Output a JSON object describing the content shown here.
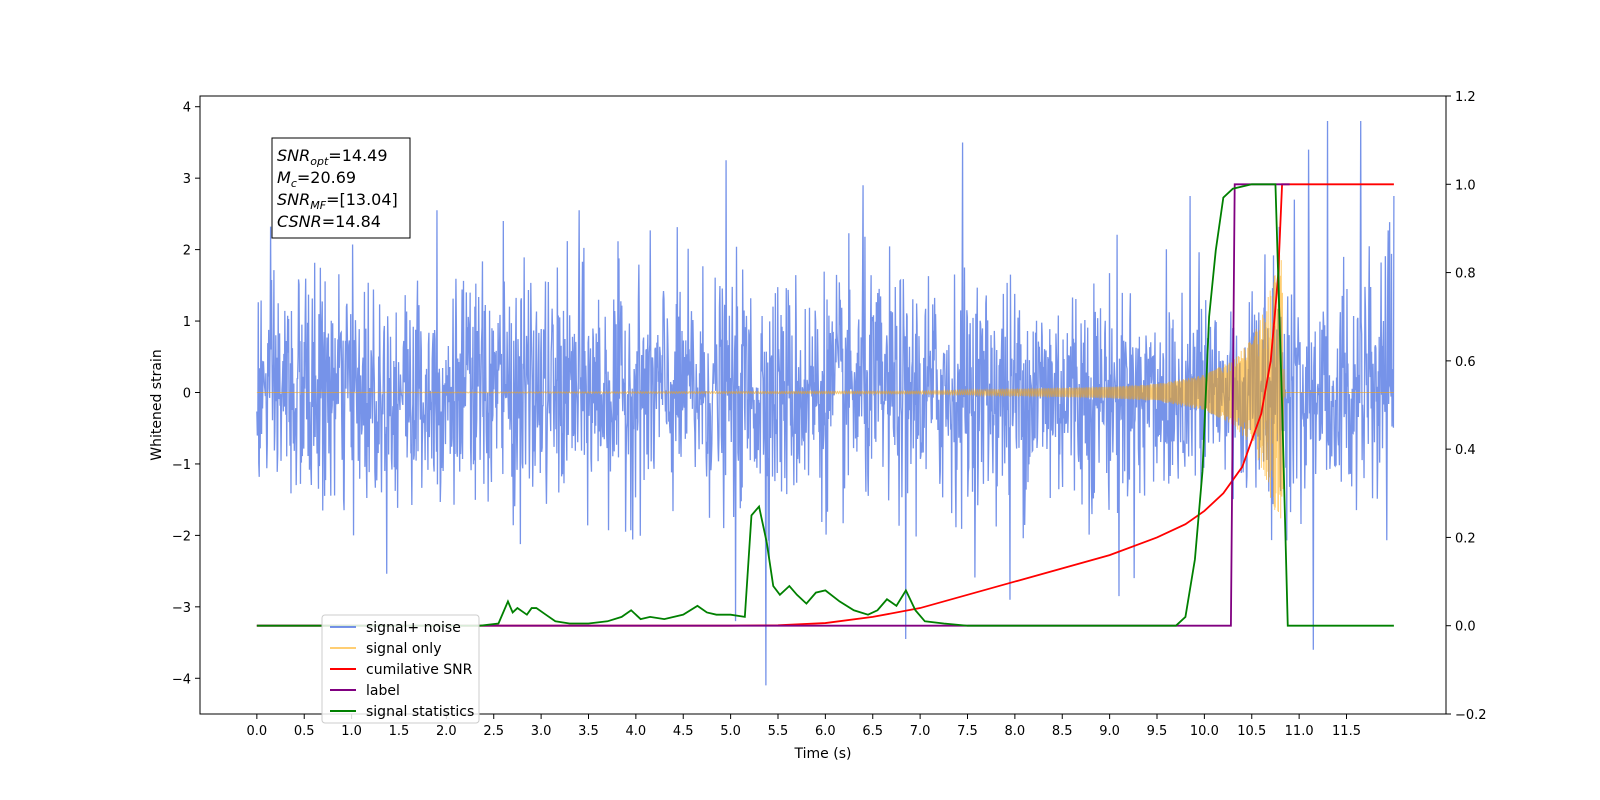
{
  "chart_data": {
    "type": "line",
    "title": "",
    "xlabel": "Time (s)",
    "ylabel": "Whitened strain",
    "y2label": "",
    "xlim": [
      -0.6,
      12.55
    ],
    "ylim": [
      -4.5,
      4.15
    ],
    "y2lim": [
      -0.2,
      1.2
    ],
    "x_ticks": [
      0.0,
      0.5,
      1.0,
      1.5,
      2.0,
      2.5,
      3.0,
      3.5,
      4.0,
      4.5,
      5.0,
      5.5,
      6.0,
      6.5,
      7.0,
      7.5,
      8.0,
      8.5,
      9.0,
      9.5,
      10.0,
      10.5,
      11.0,
      11.5
    ],
    "x_tick_labels": [
      "0.0",
      "0.5",
      "1.0",
      "1.5",
      "2.0",
      "2.5",
      "3.0",
      "3.5",
      "4.0",
      "4.5",
      "5.0",
      "5.5",
      "6.0",
      "6.5",
      "7.0",
      "7.5",
      "8.0",
      "8.5",
      "9.0",
      "9.5",
      "10.0",
      "10.5",
      "11.0",
      "11.5"
    ],
    "y_ticks": [
      -4,
      -3,
      -2,
      -1,
      0,
      1,
      2,
      3,
      4
    ],
    "y_tick_labels": [
      "−4",
      "−3",
      "−2",
      "−1",
      "0",
      "1",
      "2",
      "3",
      "4"
    ],
    "y2_ticks": [
      -0.2,
      0.0,
      0.2,
      0.4,
      0.6,
      0.8,
      1.0,
      1.2
    ],
    "y2_tick_labels": [
      "−0.2",
      "0.0",
      "0.2",
      "0.4",
      "0.6",
      "0.8",
      "1.0",
      "1.2"
    ],
    "grid": false,
    "legend_position": "lower-left",
    "annotation": {
      "lines": [
        {
          "base": "SNR",
          "sub": "opt",
          "text": "=14.49"
        },
        {
          "base": "M",
          "sub": "c",
          "text": "=20.69"
        },
        {
          "base": "SNR",
          "sub": "MF",
          "text": "=[13.04]"
        },
        {
          "base": "CSNR",
          "sub": "",
          "text": "=14.84"
        }
      ]
    },
    "series": [
      {
        "name": "signal+ noise",
        "axis": "left",
        "color": "#4169e1",
        "style": "noise",
        "x_range": [
          0.0,
          12.0
        ],
        "typical_envelope": [
          -1.8,
          1.8
        ],
        "max_envelope": [
          -2.6,
          2.6
        ],
        "spikes": [
          {
            "x": 1.9,
            "y": 2.55
          },
          {
            "x": 2.6,
            "y": 2.4
          },
          {
            "x": 3.4,
            "y": 2.55
          },
          {
            "x": 4.95,
            "y": 3.25
          },
          {
            "x": 5.05,
            "y": -3.2
          },
          {
            "x": 5.37,
            "y": -4.1
          },
          {
            "x": 6.4,
            "y": 2.9
          },
          {
            "x": 6.85,
            "y": -3.45
          },
          {
            "x": 7.45,
            "y": 3.5
          },
          {
            "x": 7.95,
            "y": -2.9
          },
          {
            "x": 9.1,
            "y": -2.85
          },
          {
            "x": 9.85,
            "y": 2.75
          },
          {
            "x": 10.95,
            "y": 2.7
          },
          {
            "x": 11.1,
            "y": 3.4
          },
          {
            "x": 11.15,
            "y": -3.6
          },
          {
            "x": 11.3,
            "y": 3.8
          },
          {
            "x": 11.65,
            "y": 3.8
          },
          {
            "x": 12.0,
            "y": 2.75
          }
        ]
      },
      {
        "name": "signal only",
        "axis": "left",
        "color": "#ffa500",
        "style": "chirp",
        "x_range": [
          0.0,
          12.0
        ],
        "amplitude": [
          [
            0.0,
            0.0
          ],
          [
            7.0,
            0.02
          ],
          [
            8.0,
            0.05
          ],
          [
            9.0,
            0.08
          ],
          [
            9.5,
            0.12
          ],
          [
            10.0,
            0.25
          ],
          [
            10.3,
            0.45
          ],
          [
            10.5,
            0.75
          ],
          [
            10.65,
            1.2
          ],
          [
            10.75,
            1.8
          ],
          [
            10.82,
            2.0
          ],
          [
            10.85,
            0.0
          ],
          [
            12.0,
            0.0
          ]
        ]
      },
      {
        "name": "cumilative SNR",
        "axis": "right",
        "color": "#ff0000",
        "x": [
          0.0,
          5.0,
          5.5,
          6.0,
          6.5,
          7.0,
          7.5,
          8.0,
          8.5,
          9.0,
          9.5,
          9.8,
          10.0,
          10.2,
          10.4,
          10.6,
          10.7,
          10.75,
          10.78,
          10.8,
          10.82,
          12.0
        ],
        "y": [
          0.0,
          0.0,
          0.001,
          0.006,
          0.02,
          0.04,
          0.07,
          0.1,
          0.13,
          0.16,
          0.2,
          0.23,
          0.26,
          0.3,
          0.36,
          0.48,
          0.6,
          0.72,
          0.8,
          0.9,
          1.0,
          1.0
        ]
      },
      {
        "name": "label",
        "axis": "right",
        "color": "#800080",
        "x": [
          0.0,
          10.28,
          10.32,
          10.9
        ],
        "y": [
          0.0,
          0.0,
          1.0,
          1.0
        ]
      },
      {
        "name": "signal statistics",
        "axis": "right",
        "color": "#008000",
        "x": [
          0.0,
          2.35,
          2.55,
          2.65,
          2.7,
          2.75,
          2.85,
          2.9,
          2.95,
          3.05,
          3.15,
          3.3,
          3.5,
          3.7,
          3.85,
          3.95,
          4.05,
          4.15,
          4.3,
          4.5,
          4.65,
          4.75,
          4.85,
          5.0,
          5.15,
          5.22,
          5.3,
          5.38,
          5.45,
          5.52,
          5.62,
          5.7,
          5.8,
          5.9,
          6.0,
          6.15,
          6.3,
          6.45,
          6.55,
          6.65,
          6.75,
          6.85,
          6.95,
          7.05,
          7.25,
          7.5,
          8.0,
          9.0,
          9.7,
          9.8,
          9.9,
          9.98,
          10.05,
          10.12,
          10.2,
          10.3,
          10.5,
          10.75,
          10.82,
          10.88,
          12.0
        ],
        "y": [
          0.0,
          0.0,
          0.005,
          0.055,
          0.03,
          0.04,
          0.025,
          0.04,
          0.04,
          0.025,
          0.01,
          0.005,
          0.005,
          0.01,
          0.02,
          0.035,
          0.015,
          0.02,
          0.015,
          0.025,
          0.045,
          0.03,
          0.025,
          0.025,
          0.02,
          0.25,
          0.27,
          0.19,
          0.09,
          0.07,
          0.09,
          0.07,
          0.05,
          0.075,
          0.08,
          0.055,
          0.035,
          0.025,
          0.035,
          0.06,
          0.045,
          0.08,
          0.035,
          0.01,
          0.005,
          0.0,
          0.0,
          0.0,
          0.0,
          0.02,
          0.15,
          0.35,
          0.7,
          0.85,
          0.97,
          0.99,
          1.0,
          1.0,
          0.5,
          0.0,
          0.0
        ]
      }
    ],
    "legend": [
      {
        "label": "signal+ noise",
        "color": "#4169e1"
      },
      {
        "label": "signal only",
        "color": "#ffa500"
      },
      {
        "label": "cumilative SNR",
        "color": "#ff0000"
      },
      {
        "label": "label",
        "color": "#800080"
      },
      {
        "label": "signal statistics",
        "color": "#008000"
      }
    ]
  }
}
